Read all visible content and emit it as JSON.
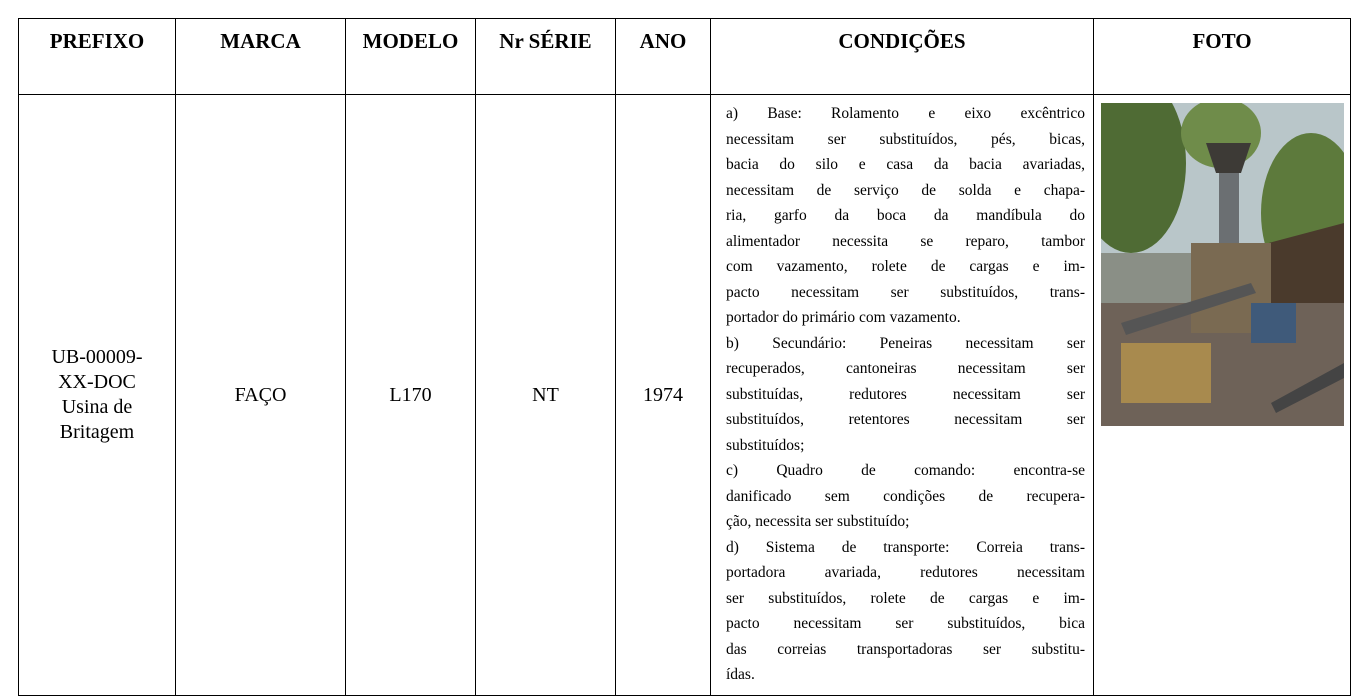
{
  "table": {
    "header": [
      "PREFIXO",
      "MARCA",
      "MODELO",
      "Nr SÉRIE",
      "ANO",
      "CONDIÇÕES",
      "FOTO"
    ],
    "row": {
      "prefixo": [
        "UB-00009-",
        "XX-DOC",
        "Usina de",
        "Britagem"
      ],
      "marca": "FAÇO",
      "modelo": "L170",
      "serie": "NT",
      "ano": "1974",
      "condicoes": [
        "a) Base: Rolamento e eixo excêntrico",
        "necessitam ser substituídos, pés, bicas,",
        "bacia do silo e casa da bacia avariadas,",
        "necessitam de serviço de solda e chapa-",
        "ria, garfo da boca da mandíbula do",
        "alimentador necessita se reparo, tambor",
        "com vazamento, rolete de cargas e im-",
        "pacto necessitam ser substituídos, trans-",
        "portador do primário com vazamento.",
        "b) Secundário: Peneiras necessitam ser",
        "recuperados, cantoneiras necessitam ser",
        "substituídas, redutores necessitam ser",
        "substituídos, retentores necessitam ser",
        "substituídos;",
        "c) Quadro de comando: encontra-se",
        "danificado sem condições de recupera-",
        "ção, necessita ser substituído;",
        "d) Sistema de transporte: Correia trans-",
        "portadora avariada, redutores necessitam",
        "ser substituídos, rolete de cargas e im-",
        "pacto necessitam ser substituídos, bica",
        "das correias transportadoras ser substitu-",
        "ídas."
      ]
    }
  }
}
